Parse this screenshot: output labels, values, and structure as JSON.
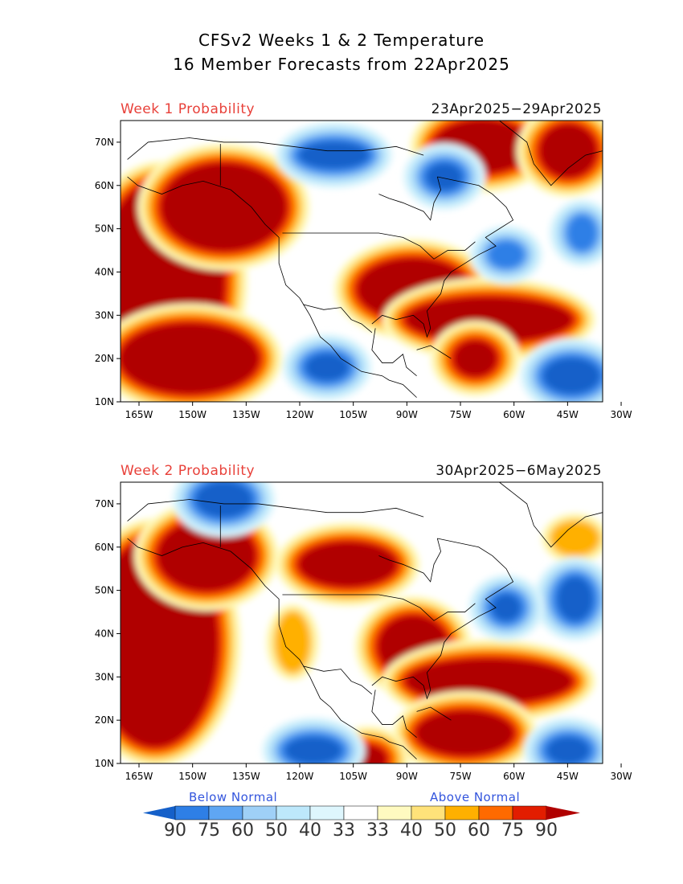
{
  "title_line1": "CFSv2 Weeks 1 & 2 Temperature",
  "title_line2": "16 Member Forecasts from 22Apr2025",
  "panels": [
    {
      "label": "Week 1 Probability",
      "dates": "23Apr2025−29Apr2025",
      "regions": [
        {
          "cat": "a90",
          "shape": "ellipse",
          "lon": -158,
          "lat": 38,
          "rlon": 18,
          "rlat": 23
        },
        {
          "cat": "a90",
          "shape": "ellipse",
          "lon": -140,
          "lat": 55,
          "rlon": 18,
          "rlat": 10
        },
        {
          "cat": "a90",
          "shape": "ellipse",
          "lon": -150,
          "lat": 20,
          "rlon": 20,
          "rlat": 8
        },
        {
          "cat": "a90",
          "shape": "ellipse",
          "lon": -85,
          "lat": 36,
          "rlon": 16,
          "rlat": 7
        },
        {
          "cat": "a90",
          "shape": "ellipse",
          "lon": -63,
          "lat": 29,
          "rlon": 24,
          "rlat": 5
        },
        {
          "cat": "a90",
          "shape": "ellipse",
          "lon": -67,
          "lat": 20,
          "rlon": 6,
          "rlat": 4
        },
        {
          "cat": "a90",
          "shape": "ellipse",
          "lon": -65,
          "lat": 69,
          "rlon": 14,
          "rlat": 6
        },
        {
          "cat": "a90",
          "shape": "ellipse",
          "lon": -40,
          "lat": 68,
          "rlon": 8,
          "rlat": 6
        },
        {
          "cat": "b90",
          "shape": "ellipse",
          "lon": -76,
          "lat": 62,
          "rlon": 5,
          "rlat": 3
        },
        {
          "cat": "b90",
          "shape": "ellipse",
          "lon": -108,
          "lat": 67,
          "rlon": 10,
          "rlat": 3
        },
        {
          "cat": "b90",
          "shape": "ellipse",
          "lon": -39,
          "lat": 16,
          "rlon": 8,
          "rlat": 4
        },
        {
          "cat": "b90",
          "shape": "ellipse",
          "lon": -110,
          "lat": 18,
          "rlon": 6,
          "rlat": 3
        },
        {
          "cat": "b75",
          "shape": "ellipse",
          "lon": -36,
          "lat": 49,
          "rlon": 4,
          "rlat": 4
        },
        {
          "cat": "b75",
          "shape": "ellipse",
          "lon": -58,
          "lat": 44,
          "rlon": 5,
          "rlat": 3
        }
      ]
    },
    {
      "label": "Week 2 Probability",
      "dates": "30Apr2025−6May2025",
      "regions": [
        {
          "cat": "a90",
          "shape": "ellipse",
          "lon": -160,
          "lat": 38,
          "rlon": 18,
          "rlat": 24
        },
        {
          "cat": "a90",
          "shape": "ellipse",
          "lon": -145,
          "lat": 58,
          "rlon": 14,
          "rlat": 8
        },
        {
          "cat": "a90",
          "shape": "ellipse",
          "lon": -104,
          "lat": 56,
          "rlon": 14,
          "rlat": 5
        },
        {
          "cat": "a90",
          "shape": "ellipse",
          "lon": -85,
          "lat": 37,
          "rlon": 10,
          "rlat": 7
        },
        {
          "cat": "a90",
          "shape": "ellipse",
          "lon": -63,
          "lat": 29,
          "rlon": 24,
          "rlat": 5
        },
        {
          "cat": "a90",
          "shape": "ellipse",
          "lon": -70,
          "lat": 17,
          "rlon": 14,
          "rlat": 5
        },
        {
          "cat": "a90",
          "shape": "ellipse",
          "lon": -98,
          "lat": 11,
          "rlon": 5,
          "rlat": 3
        },
        {
          "cat": "a50",
          "shape": "ellipse",
          "lon": -38,
          "lat": 62,
          "rlon": 7,
          "rlat": 4
        },
        {
          "cat": "a50",
          "shape": "ellipse",
          "lon": -120,
          "lat": 38,
          "rlon": 5,
          "rlat": 7
        },
        {
          "cat": "b90",
          "shape": "ellipse",
          "lon": -140,
          "lat": 71,
          "rlon": 8,
          "rlat": 4
        },
        {
          "cat": "b90",
          "shape": "ellipse",
          "lon": -38,
          "lat": 48,
          "rlon": 5,
          "rlat": 5
        },
        {
          "cat": "b90",
          "shape": "ellipse",
          "lon": -58,
          "lat": 46,
          "rlon": 4,
          "rlat": 3
        },
        {
          "cat": "b90",
          "shape": "ellipse",
          "lon": -114,
          "lat": 13,
          "rlon": 8,
          "rlat": 3
        },
        {
          "cat": "b90",
          "shape": "ellipse",
          "lon": -40,
          "lat": 13,
          "rlon": 6,
          "rlat": 3
        }
      ]
    }
  ],
  "lon_ticks": [
    "165W",
    "150W",
    "135W",
    "120W",
    "105W",
    "90W",
    "75W",
    "60W",
    "45W",
    "30W"
  ],
  "lat_ticks": [
    "10N",
    "20N",
    "30N",
    "40N",
    "50N",
    "60N",
    "70N"
  ],
  "legend": {
    "below_label": "Below Normal",
    "above_label": "Above Normal",
    "values": [
      "90",
      "75",
      "60",
      "50",
      "40",
      "33",
      "33",
      "40",
      "50",
      "60",
      "75",
      "90"
    ],
    "colors": {
      "b90": "#1560c9",
      "b75": "#2e7fe6",
      "b60": "#5fa6f3",
      "b50": "#9fd0f7",
      "b40": "#bde8fb",
      "b33": "#def6fd",
      "n": "#ffffff",
      "a33": "#fffac0",
      "a40": "#ffe27a",
      "a50": "#ffb000",
      "a60": "#ff6a00",
      "a75": "#e21d00",
      "a90": "#b00000"
    },
    "ramp": [
      "b90",
      "b75",
      "b60",
      "b50",
      "b40",
      "b33",
      "n",
      "a33",
      "a40",
      "a50",
      "a60",
      "a75",
      "a90"
    ]
  }
}
